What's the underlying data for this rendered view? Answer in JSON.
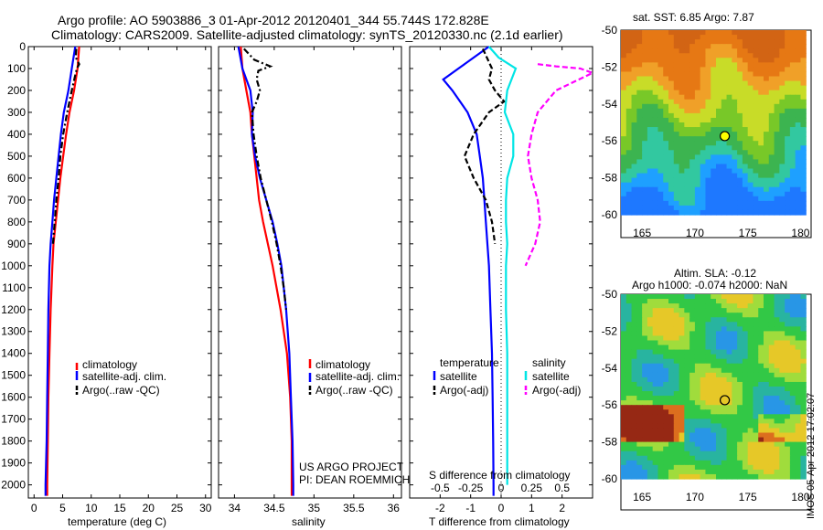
{
  "title": {
    "line1": "Argo profile: AO 5903886_3 01-Apr-2012 20120401_344 55.744S 172.828E",
    "line2": "Climatology: CARS2009. Satellite-adjusted climatology: synTS_20120330.nc (2.1d earlier)"
  },
  "colors": {
    "climatology": "#ff0000",
    "satellite": "#0000ff",
    "argo": "#000000",
    "sal_satellite": "#00e5e5",
    "sal_argo": "#ff00ff"
  },
  "chart_data": [
    {
      "type": "line",
      "name": "temperature-panel",
      "xlabel": "temperature (deg C)",
      "xlim": [
        -1,
        31
      ],
      "xticks": [
        0,
        5,
        10,
        15,
        20,
        25,
        30
      ],
      "ylim": [
        2060,
        0
      ],
      "yticks": [
        0,
        100,
        200,
        300,
        400,
        500,
        600,
        700,
        800,
        900,
        1000,
        1100,
        1200,
        1300,
        1400,
        1500,
        1600,
        1700,
        1800,
        1900,
        2000
      ],
      "legend": [
        "climatology",
        "satellite-adj. clim.",
        "Argo(..raw -QC)"
      ],
      "series": [
        {
          "name": "climatology",
          "style": "solid",
          "depth": [
            0,
            100,
            200,
            300,
            400,
            500,
            600,
            700,
            800,
            900,
            1000,
            1200,
            1400,
            1600,
            1800,
            2000,
            2050
          ],
          "values": [
            7.9,
            7.6,
            7.0,
            6.2,
            5.6,
            5.1,
            4.6,
            4.2,
            3.8,
            3.4,
            3.2,
            2.9,
            2.7,
            2.5,
            2.4,
            2.3,
            2.3
          ]
        },
        {
          "name": "satellite-adj. clim.",
          "style": "solid",
          "depth": [
            0,
            50,
            100,
            200,
            300,
            400,
            500,
            600,
            700,
            800,
            900,
            1000,
            1200,
            1400,
            1600,
            1800,
            2000,
            2050
          ],
          "values": [
            7.2,
            6.9,
            6.6,
            6.0,
            5.2,
            4.7,
            4.3,
            3.9,
            3.5,
            3.2,
            2.9,
            2.7,
            2.5,
            2.4,
            2.3,
            2.2,
            2.0,
            2.0
          ]
        },
        {
          "name": "Argo(..raw -QC)",
          "style": "dashdot",
          "depth": [
            10,
            50,
            80,
            100,
            130,
            200,
            300,
            400,
            500,
            600,
            700,
            800,
            900
          ],
          "values": [
            7.4,
            7.3,
            7.9,
            7.5,
            7.2,
            6.6,
            5.8,
            5.1,
            4.6,
            4.3,
            3.9,
            3.6,
            3.3
          ]
        }
      ]
    },
    {
      "type": "line",
      "name": "salinity-panel",
      "xlabel": "salinity",
      "xlim": [
        33.8,
        36.1
      ],
      "xticks": [
        34,
        34.5,
        35,
        35.5,
        36
      ],
      "xticklabels": [
        "34",
        "34.5",
        "35",
        "35.5",
        "36"
      ],
      "ylim": [
        2060,
        0
      ],
      "legend": [
        "climatology",
        "satellite-adj. clim.",
        "Argo(..raw -QC)"
      ],
      "annotations": [
        "US ARGO PROJECT",
        "PI: DEAN ROEMMICH"
      ],
      "series": [
        {
          "name": "climatology",
          "style": "solid",
          "depth": [
            0,
            100,
            200,
            300,
            400,
            500,
            600,
            700,
            800,
            900,
            1000,
            1200,
            1400,
            1600,
            1800,
            2000,
            2050
          ],
          "values": [
            34.08,
            34.1,
            34.15,
            34.2,
            34.22,
            34.25,
            34.28,
            34.31,
            34.36,
            34.42,
            34.48,
            34.58,
            34.66,
            34.7,
            34.72,
            34.72,
            34.72
          ]
        },
        {
          "name": "satellite-adj. clim.",
          "style": "solid",
          "depth": [
            0,
            100,
            200,
            300,
            400,
            500,
            600,
            700,
            800,
            900,
            1000,
            1200,
            1400,
            1600,
            1800,
            2000,
            2050
          ],
          "values": [
            34.05,
            34.1,
            34.2,
            34.23,
            34.22,
            34.26,
            34.32,
            34.4,
            34.48,
            34.54,
            34.59,
            34.65,
            34.69,
            34.71,
            34.73,
            34.74,
            34.74
          ]
        },
        {
          "name": "Argo(..raw -QC)",
          "style": "dashdot",
          "depth": [
            10,
            60,
            90,
            110,
            150,
            200,
            250,
            300,
            400,
            500,
            600,
            700,
            800,
            900,
            1000,
            1100,
            1200
          ],
          "values": [
            34.12,
            34.25,
            34.45,
            34.3,
            34.28,
            34.32,
            34.28,
            34.22,
            34.24,
            34.28,
            34.33,
            34.4,
            34.47,
            34.53,
            34.58,
            34.62,
            34.65
          ]
        }
      ]
    },
    {
      "type": "line",
      "name": "difference-panel",
      "xlabel": "T difference from climatology",
      "xlim": [
        -3,
        3
      ],
      "xticks": [
        -2,
        -1,
        0,
        1,
        2
      ],
      "top_axis_label": "S difference from climatology",
      "top_ticks": [
        -0.5,
        -0.25,
        0,
        0.25,
        0.5
      ],
      "top_ticklabels": [
        "-0.5",
        "-0.25",
        "0",
        "0.25",
        "0.5"
      ],
      "ylim": [
        2060,
        0
      ],
      "legend_temperature": {
        "heading": "temperature",
        "items": [
          "satellite",
          "Argo(-adj)"
        ]
      },
      "legend_salinity": {
        "heading": "salinity",
        "items": [
          "satellite",
          "Argo(-adj)"
        ]
      },
      "series": [
        {
          "name": "temperature satellite",
          "style": "solid",
          "color_key": "satellite",
          "depth": [
            0,
            50,
            100,
            150,
            200,
            300,
            400,
            500,
            600,
            700,
            800,
            900,
            1000,
            1200,
            1400,
            1600,
            1800,
            2000,
            2050
          ],
          "values": [
            -0.4,
            -0.9,
            -1.4,
            -1.9,
            -1.6,
            -1.1,
            -0.8,
            -0.7,
            -0.6,
            -0.55,
            -0.5,
            -0.45,
            -0.4,
            -0.35,
            -0.3,
            -0.28,
            -0.26,
            -0.25,
            -0.25
          ]
        },
        {
          "name": "temperature Argo(-adj)",
          "style": "dashed",
          "color_key": "argo",
          "depth": [
            10,
            100,
            150,
            200,
            250,
            300,
            400,
            500,
            600,
            700,
            800,
            900
          ],
          "values": [
            -0.6,
            -0.3,
            -0.4,
            -0.2,
            0.1,
            -0.4,
            -0.9,
            -1.2,
            -0.9,
            -0.5,
            -0.3,
            -0.2
          ]
        },
        {
          "name": "salinity satellite",
          "style": "solid",
          "color_key": "sal_satellite",
          "depth": [
            0,
            50,
            100,
            200,
            300,
            400,
            500,
            600,
            700,
            800,
            900,
            1000,
            1200,
            1400,
            1600,
            1800,
            2000
          ],
          "values": [
            -0.1,
            -0.02,
            0.12,
            0.05,
            0.03,
            0.1,
            0.1,
            0.05,
            0.04,
            0.04,
            0.05,
            0.04,
            0.04,
            0.05,
            0.05,
            0.05,
            0.05
          ]
        },
        {
          "name": "salinity Argo(-adj)",
          "style": "dashed",
          "color_key": "sal_argo",
          "depth": [
            80,
            90,
            100,
            120,
            200,
            300,
            400,
            500,
            600,
            700,
            800,
            900,
            1000
          ],
          "values": [
            0.3,
            0.45,
            0.65,
            0.75,
            0.45,
            0.3,
            0.25,
            0.22,
            0.25,
            0.3,
            0.32,
            0.28,
            0.2
          ]
        }
      ]
    },
    {
      "type": "heatmap",
      "name": "sst-map",
      "title": "sat. SST: 6.85 Argo: 7.87",
      "xticks": [
        165,
        170,
        175,
        180
      ],
      "yticks": [
        -50,
        -52,
        -54,
        -56,
        -58,
        -60
      ],
      "xlim": [
        163,
        181
      ],
      "ylim": [
        -60,
        -50
      ],
      "marker": {
        "lon": 172.83,
        "lat": -55.74
      }
    },
    {
      "type": "heatmap",
      "name": "sla-map",
      "title_line1": "Altim. SLA: -0.12",
      "title_line2": "Argo h1000: -0.074 h2000: NaN",
      "xticks": [
        165,
        170,
        175,
        180
      ],
      "yticks": [
        -50,
        -52,
        -54,
        -56,
        -58,
        -60
      ],
      "xlim": [
        163,
        181
      ],
      "ylim": [
        -60,
        -50
      ],
      "marker": {
        "lon": 172.83,
        "lat": -55.74
      }
    }
  ],
  "side_stamp": "IMOS 05-Apr-2012 17:02:07"
}
